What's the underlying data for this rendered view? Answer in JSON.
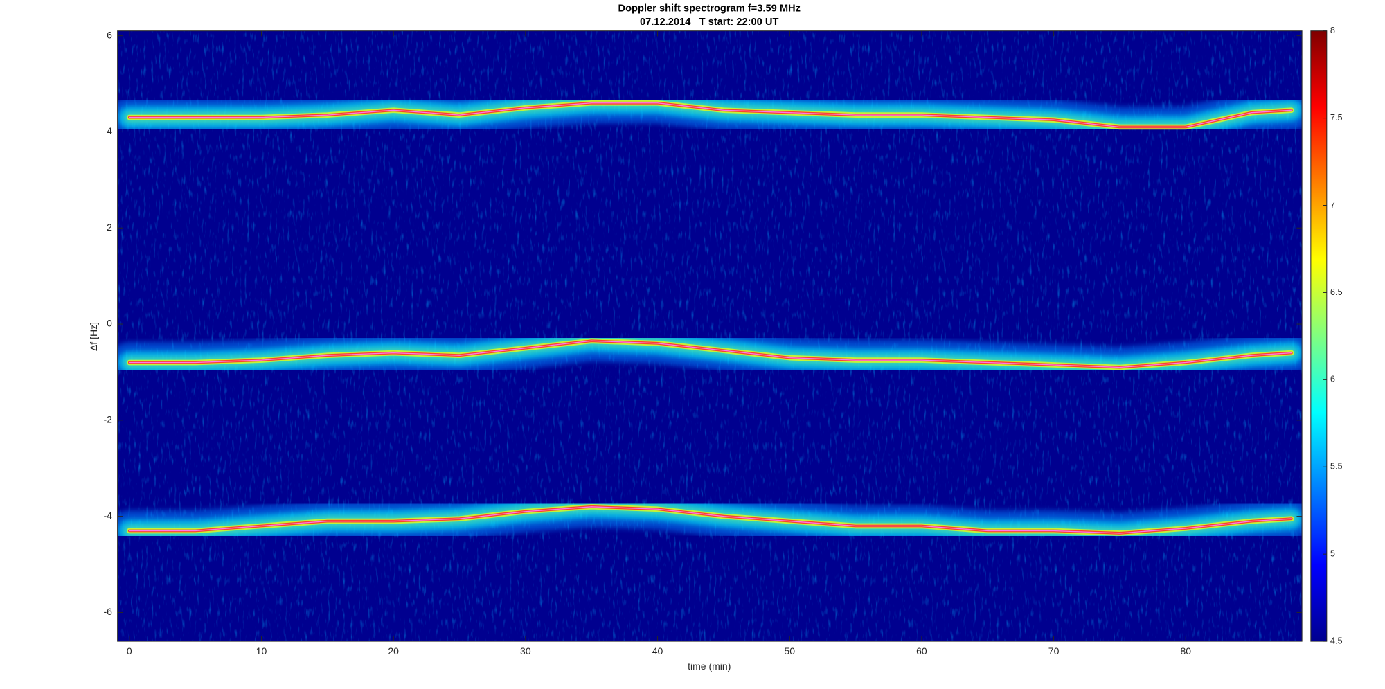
{
  "chart_data": {
    "type": "spectrogram",
    "title": "Doppler shift spectrogram f=3.59 MHz",
    "subtitle": "07.12.2014   T start: 22:00 UT",
    "x_label": "time (min)",
    "y_label": "Δf [Hz]",
    "x": [
      0,
      5,
      10,
      15,
      20,
      25,
      30,
      35,
      40,
      45,
      50,
      55,
      60,
      65,
      70,
      75,
      80,
      85,
      88
    ],
    "series": [
      {
        "color": "#ff3030",
        "values": [
          4.3,
          4.3,
          4.3,
          4.35,
          4.45,
          4.35,
          4.5,
          4.6,
          4.6,
          4.45,
          4.4,
          4.35,
          4.35,
          4.3,
          4.25,
          4.1,
          4.1,
          4.4,
          4.45
        ]
      },
      {
        "color": "#ff3030",
        "values": [
          -0.8,
          -0.8,
          -0.75,
          -0.65,
          -0.6,
          -0.65,
          -0.5,
          -0.35,
          -0.4,
          -0.55,
          -0.7,
          -0.75,
          -0.75,
          -0.8,
          -0.85,
          -0.9,
          -0.8,
          -0.65,
          -0.6
        ]
      },
      {
        "color": "#ff3030",
        "values": [
          -4.3,
          -4.3,
          -4.2,
          -4.1,
          -4.1,
          -4.05,
          -3.9,
          -3.8,
          -3.85,
          -4.0,
          -4.1,
          -4.2,
          -4.2,
          -4.3,
          -4.3,
          -4.35,
          -4.25,
          -4.1,
          -4.05
        ]
      }
    ],
    "xlim": [
      -0.9,
      88.8
    ],
    "xticks": [
      0,
      10,
      20,
      30,
      40,
      50,
      60,
      70,
      80
    ],
    "ylim": [
      -6.6,
      6.1
    ],
    "yticks": [
      -6,
      -4,
      -2,
      0,
      2,
      4,
      6
    ],
    "clim": [
      4.5,
      8
    ],
    "cticks": [
      4.5,
      5,
      5.5,
      6,
      6.5,
      7,
      7.5,
      8
    ],
    "colormap": [
      "#00008f",
      "#0000ff",
      "#0080ff",
      "#00ffff",
      "#80ff80",
      "#ffff00",
      "#ff8000",
      "#ff0000",
      "#800000"
    ]
  }
}
